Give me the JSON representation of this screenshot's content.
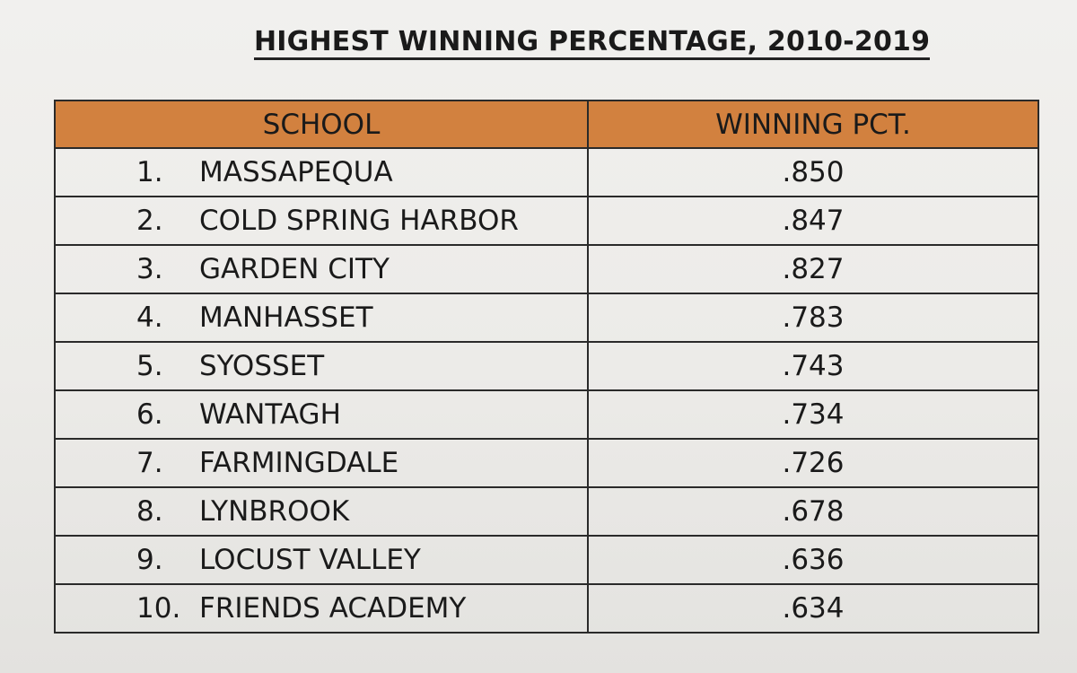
{
  "title": "HIGHEST WINNING PERCENTAGE, 2010-2019",
  "table": {
    "headers": {
      "school": "SCHOOL",
      "pct": "WINNING PCT."
    },
    "rows": [
      {
        "rank": "1.",
        "school": "MASSAPEQUA",
        "pct": ".850"
      },
      {
        "rank": "2.",
        "school": "COLD SPRING HARBOR",
        "pct": ".847"
      },
      {
        "rank": "3.",
        "school": "GARDEN CITY",
        "pct": ".827"
      },
      {
        "rank": "4.",
        "school": "MANHASSET",
        "pct": ".783"
      },
      {
        "rank": "5.",
        "school": "SYOSSET",
        "pct": ".743"
      },
      {
        "rank": "6.",
        "school": "WANTAGH",
        "pct": ".734"
      },
      {
        "rank": "7.",
        "school": "FARMINGDALE",
        "pct": ".726"
      },
      {
        "rank": "8.",
        "school": "LYNBROOK",
        "pct": ".678"
      },
      {
        "rank": "9.",
        "school": "LOCUST VALLEY",
        "pct": ".636"
      },
      {
        "rank": "10.",
        "school": "FRIENDS ACADEMY",
        "pct": ".634"
      }
    ]
  },
  "colors": {
    "header_fill": "#d2813f",
    "paper": "#efeeec",
    "ink": "#1a1a1a"
  }
}
